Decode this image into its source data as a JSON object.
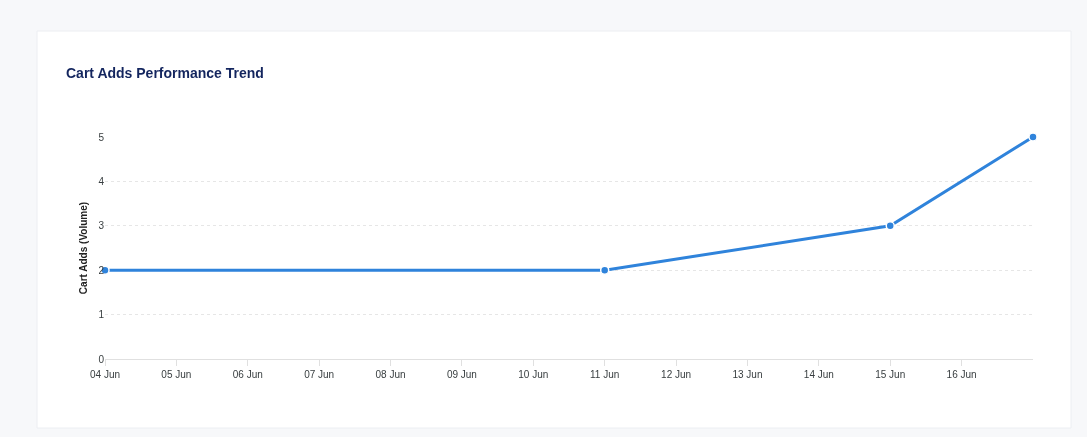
{
  "chart_data": {
    "type": "line",
    "title": "Cart Adds Performance Trend",
    "ylabel": "Cart Adds (Volume)",
    "x": [
      "--06-04",
      "--06-11",
      "--06-15",
      "--06-17"
    ],
    "series": [
      {
        "color": "#2f83db",
        "values": [
          2,
          2,
          3,
          5
        ]
      }
    ],
    "xlim": [
      "--06-04",
      "--06-17"
    ],
    "xticks": [
      {
        "value": "--06-04",
        "label": "04 Jun"
      },
      {
        "value": "--06-05",
        "label": "05 Jun"
      },
      {
        "value": "--06-06",
        "label": "06 Jun"
      },
      {
        "value": "--06-07",
        "label": "07 Jun"
      },
      {
        "value": "--06-08",
        "label": "08 Jun"
      },
      {
        "value": "--06-09",
        "label": "09 Jun"
      },
      {
        "value": "--06-10",
        "label": "10 Jun"
      },
      {
        "value": "--06-11",
        "label": "11 Jun"
      },
      {
        "value": "--06-12",
        "label": "12 Jun"
      },
      {
        "value": "--06-13",
        "label": "13 Jun"
      },
      {
        "value": "--06-14",
        "label": "14 Jun"
      },
      {
        "value": "--06-15",
        "label": "15 Jun"
      },
      {
        "value": "--06-16",
        "label": "16 Jun"
      }
    ],
    "ylim": [
      0,
      5
    ],
    "yticks": [
      0,
      1,
      2,
      3,
      4,
      5
    ],
    "grid": "y",
    "marker": "circle",
    "line_style": "solid"
  }
}
